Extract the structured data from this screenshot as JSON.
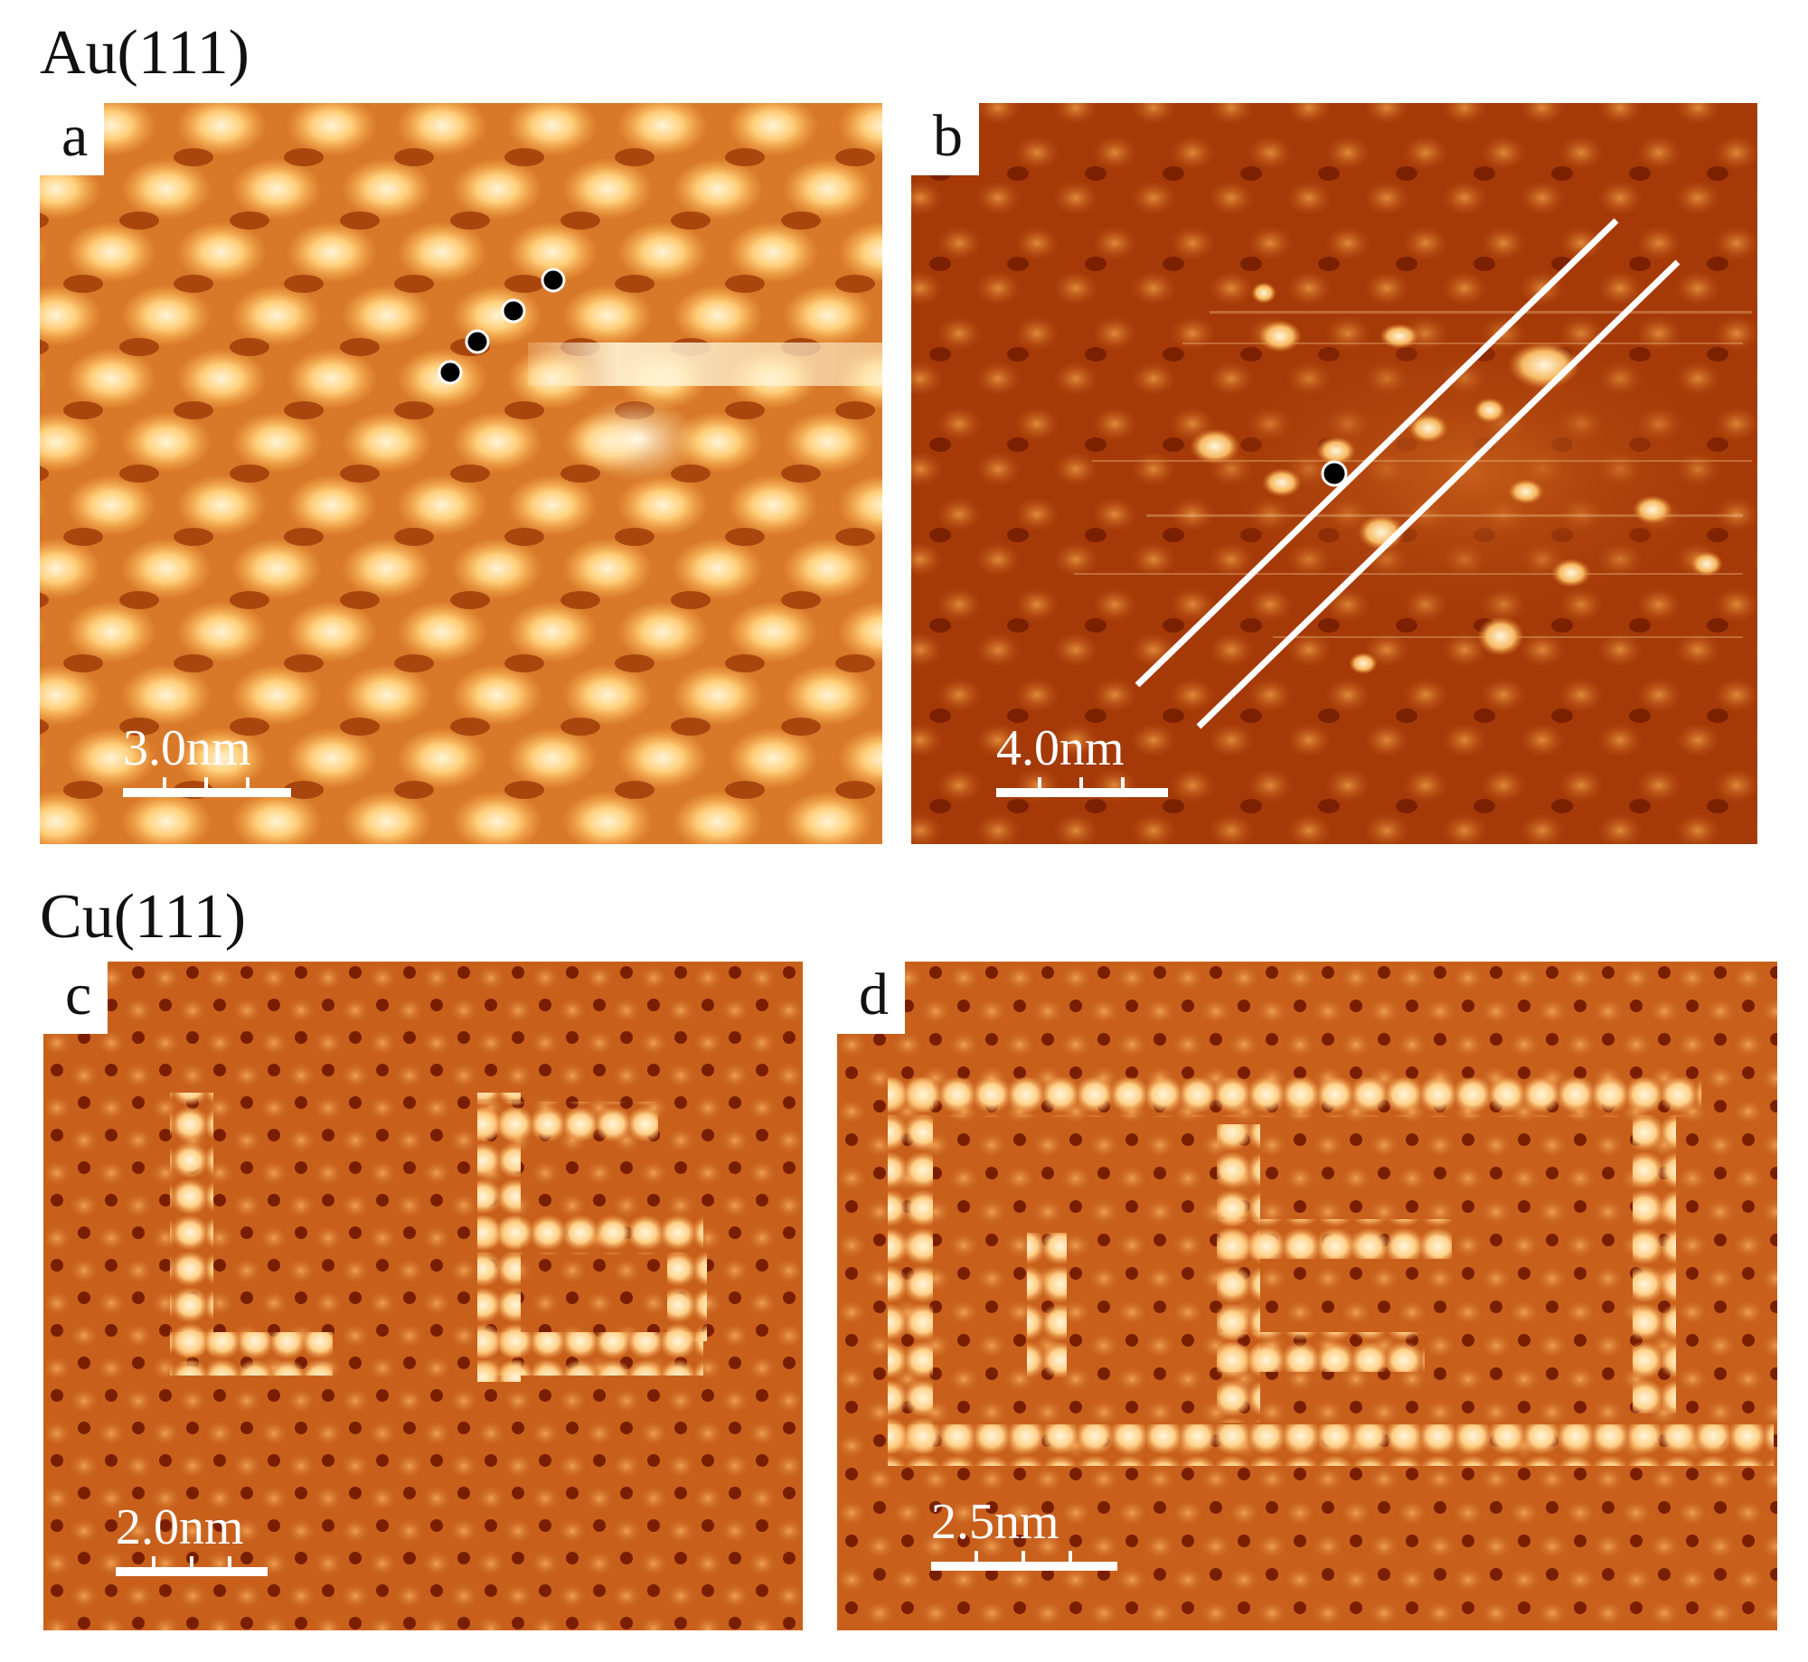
{
  "figure": {
    "sections": [
      {
        "id": "au",
        "title": "Au(111)"
      },
      {
        "id": "cu",
        "title": "Cu(111)"
      }
    ],
    "panels": [
      {
        "id": "a",
        "label": "a",
        "scale_bar": "3.0nm",
        "substrate": "Au(111)"
      },
      {
        "id": "b",
        "label": "b",
        "scale_bar": "4.0nm",
        "substrate": "Au(111)"
      },
      {
        "id": "c",
        "label": "c",
        "scale_bar": "2.0nm",
        "substrate": "Cu(111)"
      },
      {
        "id": "d",
        "label": "d",
        "scale_bar": "2.5nm",
        "substrate": "Cu(111)"
      }
    ],
    "colors": {
      "background": "#ffffff",
      "stm_dark": "#6b1500",
      "stm_mid": "#d0651a",
      "stm_bright": "#fff0cc",
      "marker_dot": "#000000",
      "line_overlay": "#ffffff"
    }
  }
}
